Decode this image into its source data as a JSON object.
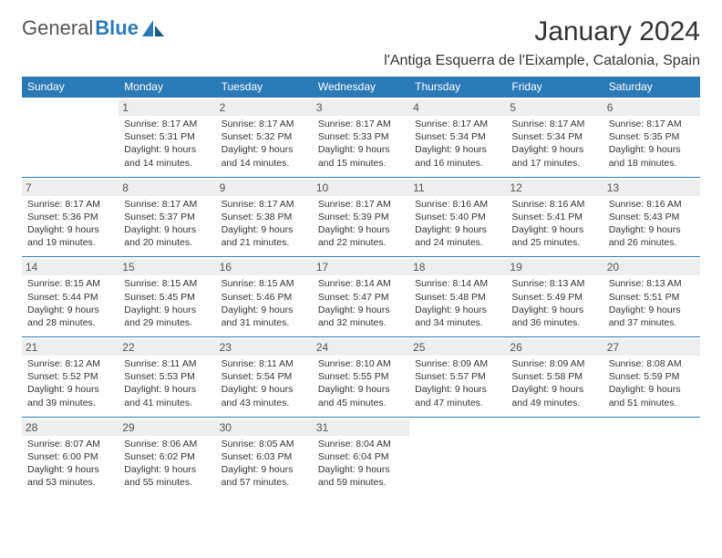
{
  "brand": {
    "part1": "General",
    "part2": "Blue"
  },
  "title": "January 2024",
  "location": "l'Antiga Esquerra de l'Eixample, Catalonia, Spain",
  "headers": [
    "Sunday",
    "Monday",
    "Tuesday",
    "Wednesday",
    "Thursday",
    "Friday",
    "Saturday"
  ],
  "colors": {
    "header_bg": "#2b7ab8",
    "header_text": "#ffffff",
    "daynum_bg": "#eeeeee",
    "border": "#2b7ab8",
    "text": "#333333"
  },
  "typography": {
    "title_fontsize": 30,
    "header_fontsize": 12,
    "cell_fontsize": 10.5
  },
  "weeks": [
    [
      {
        "n": "",
        "sr": "",
        "ss": "",
        "d1": "",
        "d2": ""
      },
      {
        "n": "1",
        "sr": "Sunrise: 8:17 AM",
        "ss": "Sunset: 5:31 PM",
        "d1": "Daylight: 9 hours",
        "d2": "and 14 minutes."
      },
      {
        "n": "2",
        "sr": "Sunrise: 8:17 AM",
        "ss": "Sunset: 5:32 PM",
        "d1": "Daylight: 9 hours",
        "d2": "and 14 minutes."
      },
      {
        "n": "3",
        "sr": "Sunrise: 8:17 AM",
        "ss": "Sunset: 5:33 PM",
        "d1": "Daylight: 9 hours",
        "d2": "and 15 minutes."
      },
      {
        "n": "4",
        "sr": "Sunrise: 8:17 AM",
        "ss": "Sunset: 5:34 PM",
        "d1": "Daylight: 9 hours",
        "d2": "and 16 minutes."
      },
      {
        "n": "5",
        "sr": "Sunrise: 8:17 AM",
        "ss": "Sunset: 5:34 PM",
        "d1": "Daylight: 9 hours",
        "d2": "and 17 minutes."
      },
      {
        "n": "6",
        "sr": "Sunrise: 8:17 AM",
        "ss": "Sunset: 5:35 PM",
        "d1": "Daylight: 9 hours",
        "d2": "and 18 minutes."
      }
    ],
    [
      {
        "n": "7",
        "sr": "Sunrise: 8:17 AM",
        "ss": "Sunset: 5:36 PM",
        "d1": "Daylight: 9 hours",
        "d2": "and 19 minutes."
      },
      {
        "n": "8",
        "sr": "Sunrise: 8:17 AM",
        "ss": "Sunset: 5:37 PM",
        "d1": "Daylight: 9 hours",
        "d2": "and 20 minutes."
      },
      {
        "n": "9",
        "sr": "Sunrise: 8:17 AM",
        "ss": "Sunset: 5:38 PM",
        "d1": "Daylight: 9 hours",
        "d2": "and 21 minutes."
      },
      {
        "n": "10",
        "sr": "Sunrise: 8:17 AM",
        "ss": "Sunset: 5:39 PM",
        "d1": "Daylight: 9 hours",
        "d2": "and 22 minutes."
      },
      {
        "n": "11",
        "sr": "Sunrise: 8:16 AM",
        "ss": "Sunset: 5:40 PM",
        "d1": "Daylight: 9 hours",
        "d2": "and 24 minutes."
      },
      {
        "n": "12",
        "sr": "Sunrise: 8:16 AM",
        "ss": "Sunset: 5:41 PM",
        "d1": "Daylight: 9 hours",
        "d2": "and 25 minutes."
      },
      {
        "n": "13",
        "sr": "Sunrise: 8:16 AM",
        "ss": "Sunset: 5:43 PM",
        "d1": "Daylight: 9 hours",
        "d2": "and 26 minutes."
      }
    ],
    [
      {
        "n": "14",
        "sr": "Sunrise: 8:15 AM",
        "ss": "Sunset: 5:44 PM",
        "d1": "Daylight: 9 hours",
        "d2": "and 28 minutes."
      },
      {
        "n": "15",
        "sr": "Sunrise: 8:15 AM",
        "ss": "Sunset: 5:45 PM",
        "d1": "Daylight: 9 hours",
        "d2": "and 29 minutes."
      },
      {
        "n": "16",
        "sr": "Sunrise: 8:15 AM",
        "ss": "Sunset: 5:46 PM",
        "d1": "Daylight: 9 hours",
        "d2": "and 31 minutes."
      },
      {
        "n": "17",
        "sr": "Sunrise: 8:14 AM",
        "ss": "Sunset: 5:47 PM",
        "d1": "Daylight: 9 hours",
        "d2": "and 32 minutes."
      },
      {
        "n": "18",
        "sr": "Sunrise: 8:14 AM",
        "ss": "Sunset: 5:48 PM",
        "d1": "Daylight: 9 hours",
        "d2": "and 34 minutes."
      },
      {
        "n": "19",
        "sr": "Sunrise: 8:13 AM",
        "ss": "Sunset: 5:49 PM",
        "d1": "Daylight: 9 hours",
        "d2": "and 36 minutes."
      },
      {
        "n": "20",
        "sr": "Sunrise: 8:13 AM",
        "ss": "Sunset: 5:51 PM",
        "d1": "Daylight: 9 hours",
        "d2": "and 37 minutes."
      }
    ],
    [
      {
        "n": "21",
        "sr": "Sunrise: 8:12 AM",
        "ss": "Sunset: 5:52 PM",
        "d1": "Daylight: 9 hours",
        "d2": "and 39 minutes."
      },
      {
        "n": "22",
        "sr": "Sunrise: 8:11 AM",
        "ss": "Sunset: 5:53 PM",
        "d1": "Daylight: 9 hours",
        "d2": "and 41 minutes."
      },
      {
        "n": "23",
        "sr": "Sunrise: 8:11 AM",
        "ss": "Sunset: 5:54 PM",
        "d1": "Daylight: 9 hours",
        "d2": "and 43 minutes."
      },
      {
        "n": "24",
        "sr": "Sunrise: 8:10 AM",
        "ss": "Sunset: 5:55 PM",
        "d1": "Daylight: 9 hours",
        "d2": "and 45 minutes."
      },
      {
        "n": "25",
        "sr": "Sunrise: 8:09 AM",
        "ss": "Sunset: 5:57 PM",
        "d1": "Daylight: 9 hours",
        "d2": "and 47 minutes."
      },
      {
        "n": "26",
        "sr": "Sunrise: 8:09 AM",
        "ss": "Sunset: 5:58 PM",
        "d1": "Daylight: 9 hours",
        "d2": "and 49 minutes."
      },
      {
        "n": "27",
        "sr": "Sunrise: 8:08 AM",
        "ss": "Sunset: 5:59 PM",
        "d1": "Daylight: 9 hours",
        "d2": "and 51 minutes."
      }
    ],
    [
      {
        "n": "28",
        "sr": "Sunrise: 8:07 AM",
        "ss": "Sunset: 6:00 PM",
        "d1": "Daylight: 9 hours",
        "d2": "and 53 minutes."
      },
      {
        "n": "29",
        "sr": "Sunrise: 8:06 AM",
        "ss": "Sunset: 6:02 PM",
        "d1": "Daylight: 9 hours",
        "d2": "and 55 minutes."
      },
      {
        "n": "30",
        "sr": "Sunrise: 8:05 AM",
        "ss": "Sunset: 6:03 PM",
        "d1": "Daylight: 9 hours",
        "d2": "and 57 minutes."
      },
      {
        "n": "31",
        "sr": "Sunrise: 8:04 AM",
        "ss": "Sunset: 6:04 PM",
        "d1": "Daylight: 9 hours",
        "d2": "and 59 minutes."
      },
      {
        "n": "",
        "sr": "",
        "ss": "",
        "d1": "",
        "d2": ""
      },
      {
        "n": "",
        "sr": "",
        "ss": "",
        "d1": "",
        "d2": ""
      },
      {
        "n": "",
        "sr": "",
        "ss": "",
        "d1": "",
        "d2": ""
      }
    ]
  ]
}
